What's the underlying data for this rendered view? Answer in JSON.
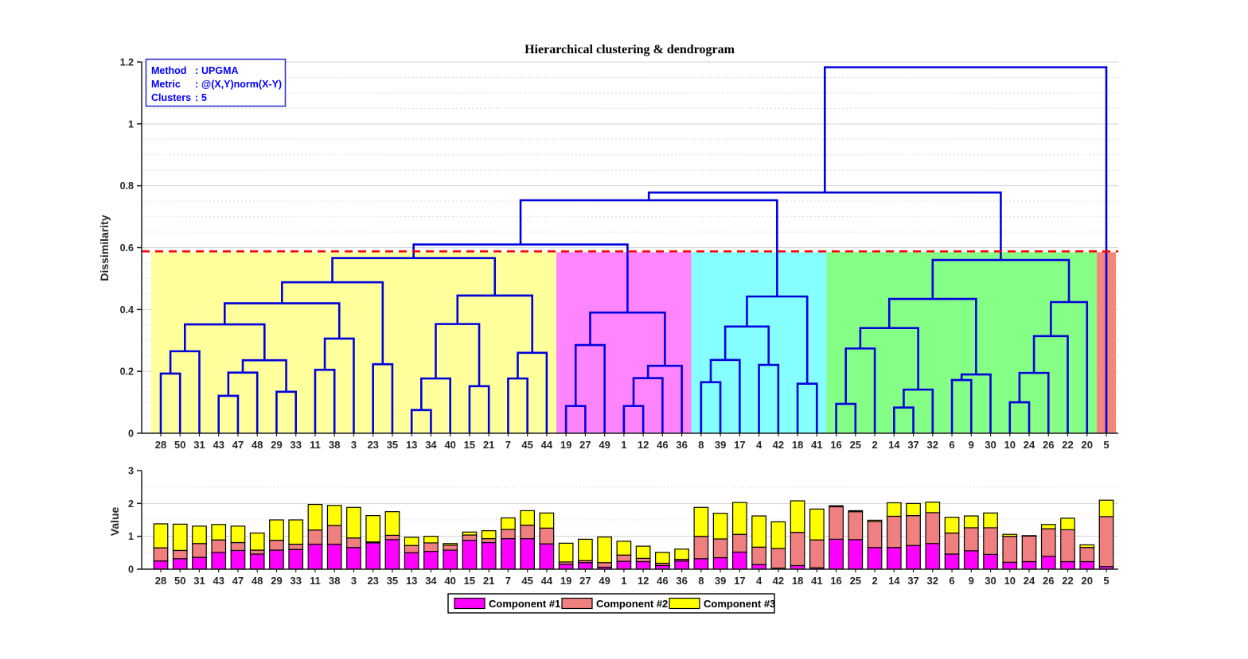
{
  "figure_title": "Hierarchical clustering & dendrogram",
  "info_box": {
    "text_color": "#0000FF",
    "border_color": "#3333CC",
    "lines": [
      {
        "label": "Method",
        "sep": ":",
        "value": "UPGMA"
      },
      {
        "label": "Metric",
        "sep": ":",
        "value": "@(X,Y)norm(X-Y)"
      },
      {
        "label": "Clusters",
        "sep": ":",
        "value": "5"
      }
    ]
  },
  "legend": {
    "items": [
      {
        "label": "Component #1",
        "color": "#FF00FF"
      },
      {
        "label": "Component #2",
        "color": "#F08080"
      },
      {
        "label": "Component #3",
        "color": "#FFFF00"
      }
    ]
  },
  "chart_data": [
    {
      "type": "dendrogram",
      "title": "Hierarchical clustering & dendrogram",
      "ylabel": "Dissimilarity",
      "ylim": [
        0,
        1.2
      ],
      "ytick_major": 0.2,
      "ytick_minor": 0.05,
      "yticks": [
        "0",
        "0.2",
        "0.4",
        "0.6",
        "0.8",
        "1",
        "1.2"
      ],
      "line_color": "#0000DD",
      "cut_line": {
        "height": 0.588,
        "color": "#FF0000",
        "style": "dashed"
      },
      "band_top": 0.585,
      "grid": true,
      "leaves": [
        "28",
        "50",
        "31",
        "43",
        "47",
        "48",
        "29",
        "33",
        "11",
        "38",
        "3",
        "23",
        "35",
        "13",
        "34",
        "40",
        "15",
        "21",
        "7",
        "45",
        "44",
        "19",
        "27",
        "49",
        "1",
        "12",
        "46",
        "36",
        "8",
        "39",
        "17",
        "4",
        "42",
        "18",
        "41",
        "16",
        "25",
        "2",
        "14",
        "37",
        "32",
        "6",
        "9",
        "30",
        "10",
        "24",
        "26",
        "22",
        "20",
        "5"
      ],
      "cluster_bands": [
        {
          "name": "cluster-1",
          "color": "#FFFF9C",
          "leaf_start": 0,
          "leaf_end": 20
        },
        {
          "name": "cluster-2",
          "color": "#FF85FF",
          "leaf_start": 21,
          "leaf_end": 27
        },
        {
          "name": "cluster-3",
          "color": "#85FFFF",
          "leaf_start": 28,
          "leaf_end": 34
        },
        {
          "name": "cluster-4",
          "color": "#85FF85",
          "leaf_start": 35,
          "leaf_end": 48
        },
        {
          "name": "cluster-5",
          "color": "#F4867E",
          "leaf_start": 49,
          "leaf_end": 49
        }
      ],
      "tree": {
        "h": 1.183,
        "c": [
          {
            "h": 0.778,
            "c": [
              {
                "h": 0.753,
                "c": [
                  {
                    "h": 0.61,
                    "c": [
                      {
                        "h": 0.566,
                        "c": [
                          {
                            "h": 0.488,
                            "c": [
                              {
                                "h": 0.42,
                                "c": [
                                  {
                                    "h": 0.352,
                                    "c": [
                                      {
                                        "h": 0.265,
                                        "c": [
                                          {
                                            "h": 0.193,
                                            "c": [
                                              "28",
                                              "50"
                                            ]
                                          },
                                          "31"
                                        ]
                                      },
                                      {
                                        "h": 0.236,
                                        "c": [
                                          {
                                            "h": 0.196,
                                            "c": [
                                              {
                                                "h": 0.121,
                                                "c": [
                                                  "43",
                                                  "47"
                                                ]
                                              },
                                              "48"
                                            ]
                                          },
                                          {
                                            "h": 0.134,
                                            "c": [
                                              "29",
                                              "33"
                                            ]
                                          }
                                        ]
                                      }
                                    ]
                                  },
                                  {
                                    "h": 0.306,
                                    "c": [
                                      {
                                        "h": 0.205,
                                        "c": [
                                          "11",
                                          "38"
                                        ]
                                      },
                                      "3"
                                    ]
                                  }
                                ]
                              },
                              {
                                "h": 0.223,
                                "c": [
                                  "23",
                                  "35"
                                ]
                              }
                            ]
                          },
                          {
                            "h": 0.445,
                            "c": [
                              {
                                "h": 0.353,
                                "c": [
                                  {
                                    "h": 0.177,
                                    "c": [
                                      {
                                        "h": 0.075,
                                        "c": [
                                          "13",
                                          "34"
                                        ]
                                      },
                                      "40"
                                    ]
                                  },
                                  {
                                    "h": 0.152,
                                    "c": [
                                      "15",
                                      "21"
                                    ]
                                  }
                                ]
                              },
                              {
                                "h": 0.26,
                                "c": [
                                  {
                                    "h": 0.177,
                                    "c": [
                                      "7",
                                      "45"
                                    ]
                                  },
                                  "44"
                                ]
                              }
                            ]
                          }
                        ]
                      },
                      {
                        "h": 0.39,
                        "c": [
                          {
                            "h": 0.285,
                            "c": [
                              {
                                "h": 0.088,
                                "c": [
                                  "19",
                                  "27"
                                ]
                              },
                              "49"
                            ]
                          },
                          {
                            "h": 0.218,
                            "c": [
                              {
                                "h": 0.178,
                                "c": [
                                  {
                                    "h": 0.088,
                                    "c": [
                                      "1",
                                      "12"
                                    ]
                                  },
                                  "46"
                                ]
                              },
                              "36"
                            ]
                          }
                        ]
                      }
                    ]
                  },
                  {
                    "h": 0.442,
                    "c": [
                      {
                        "h": 0.345,
                        "c": [
                          {
                            "h": 0.237,
                            "c": [
                              {
                                "h": 0.165,
                                "c": [
                                  "8",
                                  "39"
                                ]
                              },
                              "17"
                            ]
                          },
                          {
                            "h": 0.221,
                            "c": [
                              "4",
                              "42"
                            ]
                          }
                        ]
                      },
                      {
                        "h": 0.16,
                        "c": [
                          "18",
                          "41"
                        ]
                      }
                    ]
                  }
                ]
              },
              {
                "h": 0.56,
                "c": [
                  {
                    "h": 0.434,
                    "c": [
                      {
                        "h": 0.34,
                        "c": [
                          {
                            "h": 0.274,
                            "c": [
                              {
                                "h": 0.095,
                                "c": [
                                  "16",
                                  "25"
                                ]
                              },
                              "2"
                            ]
                          },
                          {
                            "h": 0.141,
                            "c": [
                              {
                                "h": 0.083,
                                "c": [
                                  "14",
                                  "37"
                                ]
                              },
                              "32"
                            ]
                          }
                        ]
                      },
                      {
                        "h": 0.19,
                        "c": [
                          {
                            "h": 0.172,
                            "c": [
                              "6",
                              "9"
                            ]
                          },
                          "30"
                        ]
                      }
                    ]
                  },
                  {
                    "h": 0.424,
                    "c": [
                      {
                        "h": 0.314,
                        "c": [
                          {
                            "h": 0.195,
                            "c": [
                              {
                                "h": 0.1,
                                "c": [
                                  "10",
                                  "24"
                                ]
                              },
                              "26"
                            ]
                          },
                          "22"
                        ]
                      },
                      "20"
                    ]
                  }
                ]
              }
            ]
          },
          "5"
        ]
      }
    },
    {
      "type": "bar",
      "stacked": true,
      "ylabel": "Value",
      "ylim": [
        0,
        3
      ],
      "yticks": [
        "0",
        "1",
        "2",
        "3"
      ],
      "grid": true,
      "legend_position": "bottom",
      "categories": [
        "28",
        "50",
        "31",
        "43",
        "47",
        "48",
        "29",
        "33",
        "11",
        "38",
        "3",
        "23",
        "35",
        "13",
        "34",
        "40",
        "15",
        "21",
        "7",
        "45",
        "44",
        "19",
        "27",
        "49",
        "1",
        "12",
        "46",
        "36",
        "8",
        "39",
        "17",
        "4",
        "42",
        "18",
        "41",
        "16",
        "25",
        "2",
        "14",
        "37",
        "32",
        "6",
        "9",
        "30",
        "10",
        "24",
        "26",
        "22",
        "20",
        "5"
      ],
      "series": [
        {
          "name": "Component #1",
          "color": "#FF00FF",
          "values": [
            0.25,
            0.32,
            0.36,
            0.51,
            0.57,
            0.46,
            0.58,
            0.6,
            0.76,
            0.76,
            0.66,
            0.8,
            0.9,
            0.5,
            0.54,
            0.58,
            0.88,
            0.81,
            0.93,
            0.93,
            0.77,
            0.15,
            0.2,
            0.06,
            0.24,
            0.23,
            0.11,
            0.25,
            0.32,
            0.35,
            0.52,
            0.14,
            0.03,
            0.11,
            0.04,
            0.91,
            0.9,
            0.66,
            0.66,
            0.72,
            0.78,
            0.46,
            0.56,
            0.45,
            0.21,
            0.23,
            0.39,
            0.23,
            0.23,
            0.08
          ]
        },
        {
          "name": "Component #2",
          "color": "#F08080",
          "values": [
            0.4,
            0.25,
            0.42,
            0.38,
            0.24,
            0.12,
            0.3,
            0.16,
            0.43,
            0.57,
            0.29,
            0.03,
            0.13,
            0.22,
            0.26,
            0.15,
            0.16,
            0.12,
            0.28,
            0.41,
            0.48,
            0.07,
            0.06,
            0.14,
            0.19,
            0.1,
            0.07,
            0.05,
            0.68,
            0.57,
            0.54,
            0.53,
            0.6,
            1.01,
            0.85,
            0.99,
            0.85,
            0.79,
            0.95,
            0.91,
            0.94,
            0.64,
            0.7,
            0.81,
            0.79,
            0.78,
            0.84,
            0.97,
            0.43,
            1.52
          ]
        },
        {
          "name": "Component #3",
          "color": "#FFFF00",
          "values": [
            0.73,
            0.8,
            0.53,
            0.47,
            0.5,
            0.52,
            0.62,
            0.74,
            0.78,
            0.61,
            0.93,
            0.8,
            0.72,
            0.25,
            0.2,
            0.05,
            0.09,
            0.24,
            0.35,
            0.44,
            0.46,
            0.57,
            0.65,
            0.78,
            0.42,
            0.37,
            0.33,
            0.31,
            0.88,
            0.78,
            0.97,
            0.95,
            0.81,
            0.96,
            0.94,
            0.03,
            0.03,
            0.04,
            0.41,
            0.37,
            0.32,
            0.48,
            0.36,
            0.45,
            0.06,
            0.01,
            0.13,
            0.35,
            0.08,
            0.5
          ]
        }
      ]
    }
  ]
}
